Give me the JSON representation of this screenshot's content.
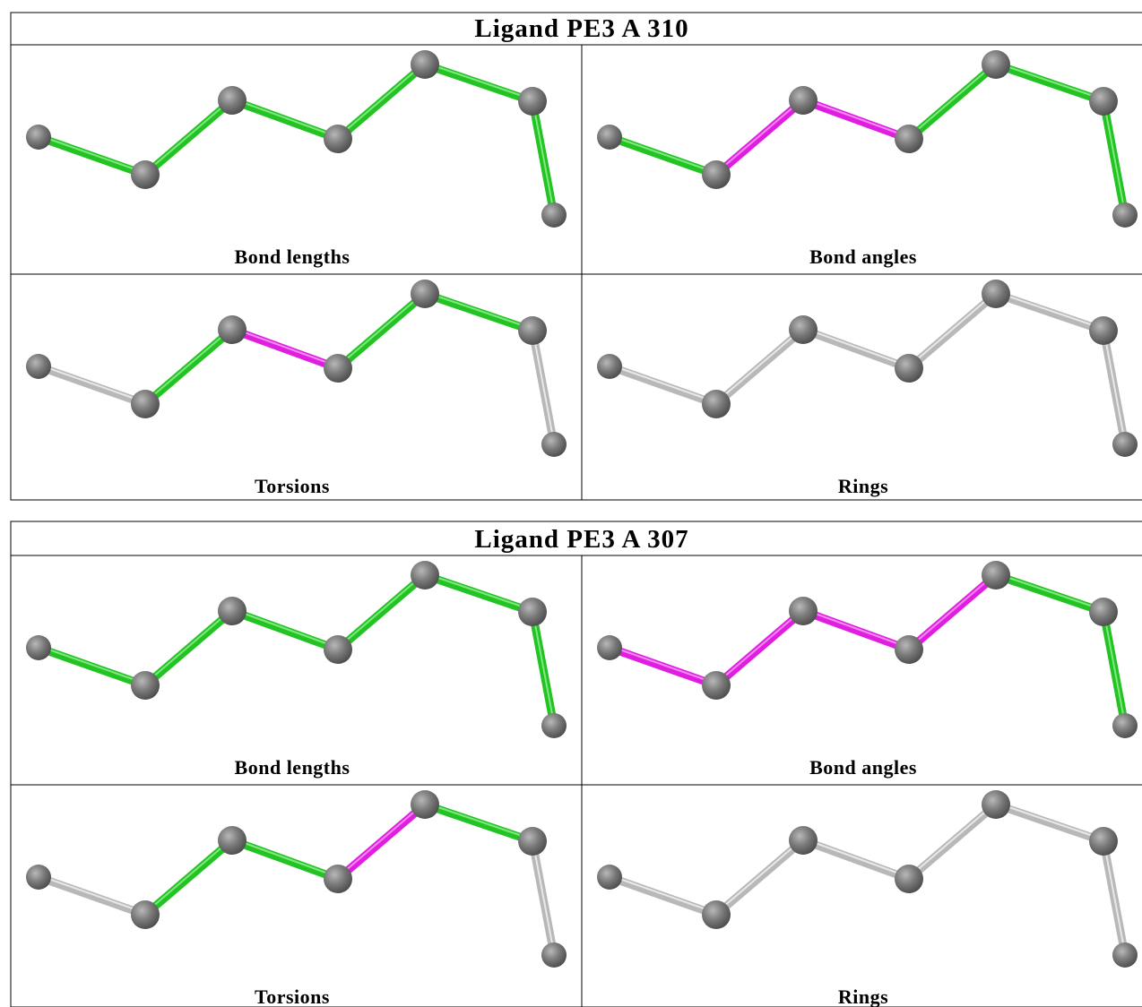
{
  "tables": [
    {
      "title": "Ligand PE3 A 310",
      "cells": [
        "Bond lengths",
        "Bond angles",
        "Torsions",
        "Rings"
      ]
    },
    {
      "title": "Ligand PE3 A 307",
      "cells": [
        "Bond lengths",
        "Bond angles",
        "Torsions",
        "Rings"
      ]
    }
  ]
}
